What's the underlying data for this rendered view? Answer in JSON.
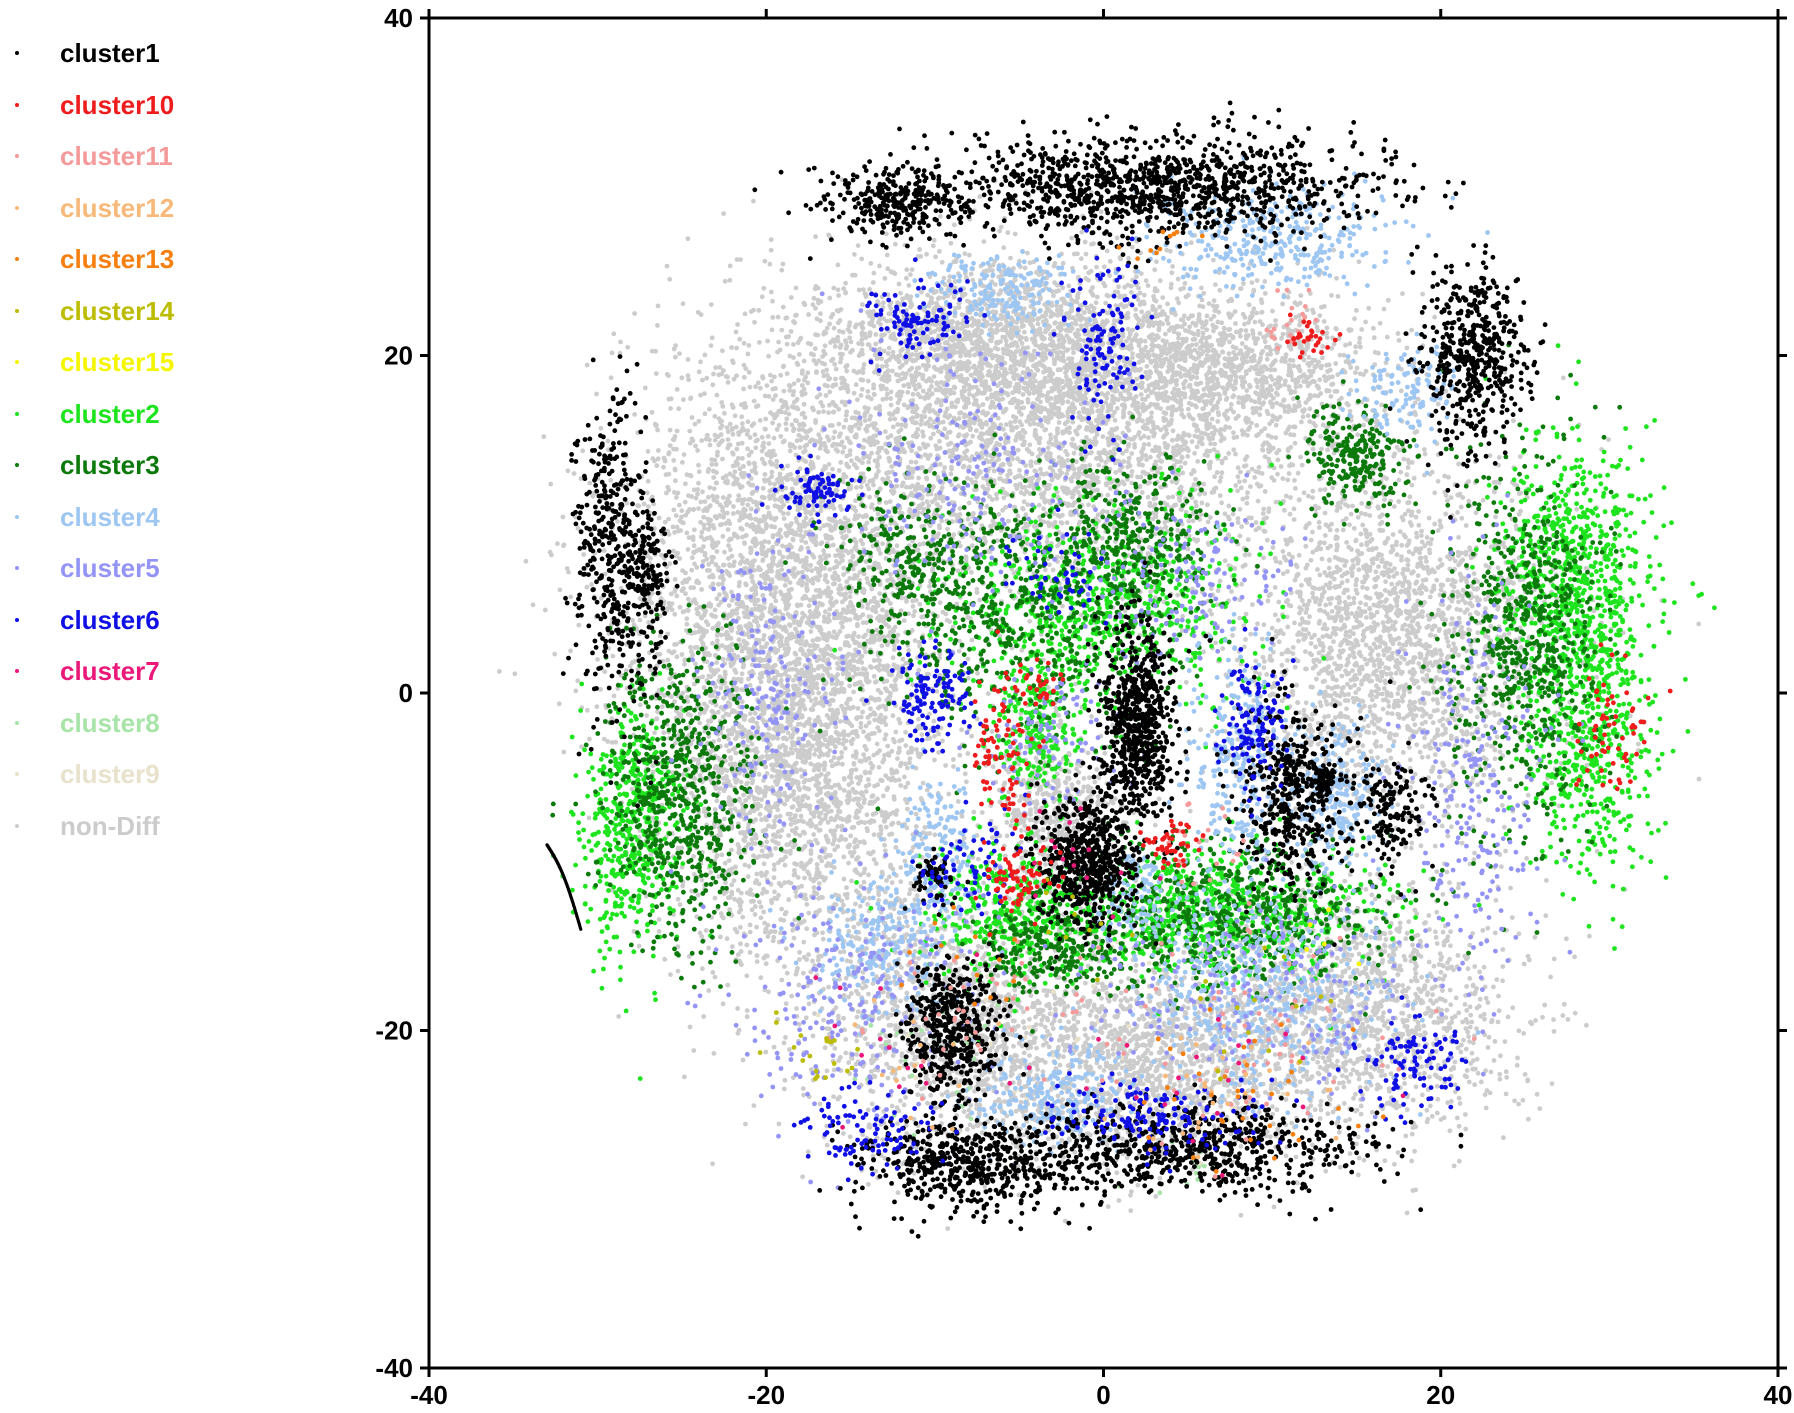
{
  "chart_data": {
    "type": "scatter",
    "title": "",
    "xlabel": "",
    "ylabel": "",
    "xlim": [
      -40,
      40
    ],
    "ylim": [
      -40,
      40
    ],
    "x_ticks": [
      "-40",
      "-20",
      "0",
      "20",
      "40"
    ],
    "y_ticks": [
      "40",
      "20",
      "0",
      "-20",
      "-40"
    ],
    "grid": false,
    "legend_position": "left",
    "series": [
      {
        "name": "cluster1",
        "color": "#000000"
      },
      {
        "name": "cluster10",
        "color": "#ee1c1c"
      },
      {
        "name": "cluster11",
        "color": "#f59a9a"
      },
      {
        "name": "cluster12",
        "color": "#f7b979"
      },
      {
        "name": "cluster13",
        "color": "#f57f0f"
      },
      {
        "name": "cluster14",
        "color": "#bcbc00"
      },
      {
        "name": "cluster15",
        "color": "#f5f500"
      },
      {
        "name": "cluster2",
        "color": "#1ee41e"
      },
      {
        "name": "cluster3",
        "color": "#0b7a0b"
      },
      {
        "name": "cluster4",
        "color": "#9ec6f2"
      },
      {
        "name": "cluster5",
        "color": "#9494f7"
      },
      {
        "name": "cluster6",
        "color": "#1010e6"
      },
      {
        "name": "cluster7",
        "color": "#ea1878"
      },
      {
        "name": "cluster8",
        "color": "#a8e4a8"
      },
      {
        "name": "cluster9",
        "color": "#e8e2cc"
      },
      {
        "name": "non-Diff",
        "color": "#cccccc"
      }
    ],
    "point_clouds": {
      "non-Diff": [
        [
          -19,
          8,
          7,
          9,
          2600
        ],
        [
          -18,
          -4,
          5.5,
          8.5,
          2400
        ],
        [
          -3,
          16,
          10,
          6,
          3200
        ],
        [
          17,
          3,
          6.5,
          7,
          2200
        ],
        [
          15,
          -19,
          6.5,
          5,
          1500
        ],
        [
          -8,
          -20,
          6,
          5,
          1400
        ],
        [
          3,
          -22,
          5,
          4,
          1100
        ],
        [
          -3,
          -7,
          2.5,
          3.5,
          500
        ],
        [
          -6,
          21,
          7,
          3,
          1200
        ],
        [
          8,
          19,
          6,
          3,
          900
        ]
      ],
      "cluster1": [
        [
          2,
          -2,
          1.5,
          4,
          700
        ],
        [
          -1,
          -10,
          2,
          2.5,
          600
        ],
        [
          11,
          -6,
          2,
          3.5,
          450
        ],
        [
          17,
          -7,
          1.5,
          2,
          160
        ],
        [
          3,
          30,
          9,
          2,
          1200
        ],
        [
          -12,
          29,
          3,
          1.3,
          300
        ],
        [
          22,
          20,
          2,
          3.5,
          500
        ],
        [
          -29,
          8,
          1.6,
          6,
          450
        ],
        [
          -9,
          -20,
          2,
          2.6,
          450
        ],
        [
          -8,
          -28,
          4,
          1.8,
          550
        ],
        [
          5,
          -27,
          7,
          1.8,
          700
        ],
        [
          13,
          -5,
          0.5,
          0.5,
          60
        ],
        [
          -10,
          -11,
          1,
          1,
          60
        ],
        [
          -27,
          7,
          0.8,
          3,
          120
        ]
      ],
      "cluster2": [
        [
          0,
          5,
          6,
          4,
          700
        ],
        [
          6,
          -13,
          7,
          2.5,
          800
        ],
        [
          -6,
          -13,
          3,
          3,
          300
        ],
        [
          28,
          7,
          3,
          5,
          700
        ],
        [
          29,
          -3,
          2.5,
          5,
          500
        ],
        [
          -28,
          -8,
          2,
          5,
          500
        ],
        [
          -4,
          -2,
          1.5,
          2.5,
          200
        ]
      ],
      "cluster3": [
        [
          -5,
          5,
          6,
          5,
          700
        ],
        [
          2,
          9,
          3,
          3,
          300
        ],
        [
          8,
          -13,
          6,
          3,
          600
        ],
        [
          25,
          3,
          3,
          7,
          700
        ],
        [
          -25,
          -6,
          3,
          6,
          700
        ],
        [
          -12,
          8,
          3,
          3,
          200
        ],
        [
          15,
          14,
          2,
          2,
          250
        ],
        [
          -3,
          -15,
          3,
          2,
          250
        ]
      ],
      "cluster4": [
        [
          -13,
          -15,
          3,
          3,
          250
        ],
        [
          -3,
          -24,
          3,
          2,
          250
        ],
        [
          9,
          -18,
          5,
          4,
          450
        ],
        [
          10,
          27,
          5,
          2,
          350
        ],
        [
          8,
          -4,
          2,
          5,
          300
        ],
        [
          14,
          -6,
          2,
          3,
          250
        ],
        [
          -6,
          24,
          3,
          1.5,
          180
        ],
        [
          -10,
          -9,
          1.5,
          3,
          150
        ],
        [
          18,
          18,
          2,
          2,
          120
        ],
        [
          2,
          -12,
          2,
          2,
          120
        ]
      ],
      "cluster5": [
        [
          -15,
          -18,
          5,
          5,
          250
        ],
        [
          9,
          -18,
          7,
          4,
          250
        ],
        [
          22,
          -6,
          3,
          8,
          250
        ],
        [
          -20,
          0,
          3,
          6,
          200
        ],
        [
          -8,
          13,
          5,
          5,
          200
        ],
        [
          5,
          7,
          4,
          3,
          150
        ],
        [
          -3,
          -3,
          3,
          3,
          100
        ]
      ],
      "cluster6": [
        [
          -10,
          0,
          1.5,
          2,
          120
        ],
        [
          9,
          -2,
          1.5,
          3,
          120
        ],
        [
          0,
          21,
          1.5,
          3.5,
          120
        ],
        [
          -11,
          22,
          2,
          1.5,
          100
        ],
        [
          -17,
          12,
          1.5,
          1,
          80
        ],
        [
          3,
          -25,
          4,
          1.5,
          150
        ],
        [
          -14,
          -26,
          3,
          1.5,
          100
        ],
        [
          18,
          -22,
          2,
          2,
          100
        ],
        [
          -8,
          -10,
          2,
          2,
          70
        ],
        [
          -3,
          7,
          2,
          2,
          50
        ]
      ],
      "cluster10": [
        [
          -6,
          -4,
          1.2,
          4,
          90
        ],
        [
          -5,
          -11,
          1.5,
          1.2,
          70
        ],
        [
          4,
          -9,
          1,
          1,
          50
        ],
        [
          30,
          -2,
          1.5,
          3,
          60
        ],
        [
          12,
          21,
          1,
          0.8,
          30
        ],
        [
          -4,
          0,
          1.2,
          1,
          30
        ]
      ],
      "cluster7": [
        [
          -1,
          -10,
          3,
          3,
          15
        ],
        [
          9,
          -22,
          5,
          3,
          20
        ],
        [
          -13,
          -20,
          4,
          3,
          15
        ]
      ],
      "cluster11": [
        [
          9,
          -20,
          6,
          4,
          60
        ],
        [
          -8,
          -19,
          5,
          3,
          40
        ],
        [
          11,
          22,
          1.5,
          1.5,
          20
        ],
        [
          6,
          -9,
          2,
          2,
          20
        ]
      ],
      "cluster12": [
        [
          8,
          -23,
          5,
          3,
          30
        ],
        [
          -12,
          -22,
          4,
          3,
          15
        ]
      ],
      "cluster13": [
        [
          8,
          -24,
          5,
          3,
          35
        ],
        [
          -8,
          -16,
          3,
          2,
          15
        ],
        [
          4,
          27,
          2,
          1,
          10
        ]
      ],
      "cluster14": [
        [
          -17,
          -21,
          2,
          2,
          20
        ],
        [
          -1,
          -14,
          2,
          2,
          10
        ],
        [
          9,
          -19,
          4,
          3,
          15
        ]
      ],
      "cluster15": [
        [
          12,
          -15,
          2,
          2,
          5
        ]
      ],
      "cluster8": [
        [
          -10,
          -21,
          3,
          3,
          30
        ],
        [
          5,
          -28,
          3,
          1,
          20
        ]
      ],
      "cluster9": [
        [
          -5,
          -20,
          5,
          4,
          30
        ],
        [
          6,
          -25,
          5,
          2,
          20
        ]
      ]
    }
  }
}
